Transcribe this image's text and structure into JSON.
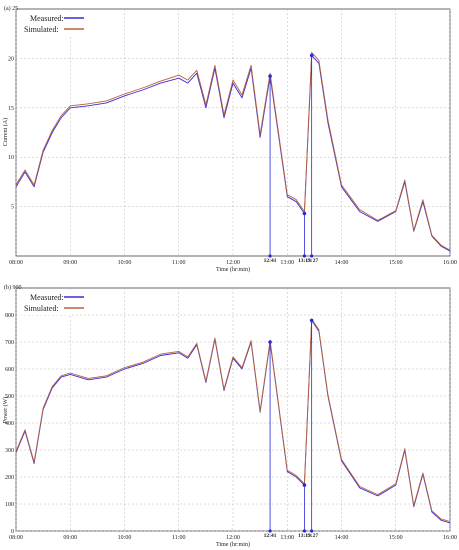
{
  "colors": {
    "measured": "#3b2bd6",
    "simulated": "#b5633a",
    "marker": "#2a2ad9",
    "grid": "#b8b8b8",
    "axis": "#444444"
  },
  "chart_data": [
    {
      "type": "line",
      "panel_label": "(a) 25",
      "xlabel": "Time (hr:min)",
      "ylabel": "Current (A)",
      "xlim": [
        "08:00",
        "16:00"
      ],
      "ylim": [
        0,
        25
      ],
      "xticks": [
        "08:00",
        "09:00",
        "10:00",
        "11:00",
        "12:00",
        "13:00",
        "14:00",
        "15:00",
        "16:00"
      ],
      "yticks": [
        5,
        10,
        15,
        20
      ],
      "legend": {
        "position": "top-left"
      },
      "grid": true,
      "series": [
        {
          "name": "Measured:",
          "color": "#3b2bd6",
          "x": [
            "08:00",
            "08:10",
            "08:20",
            "08:30",
            "08:40",
            "08:50",
            "09:00",
            "09:20",
            "09:40",
            "10:00",
            "10:20",
            "10:40",
            "11:00",
            "11:10",
            "11:20",
            "11:30",
            "11:40",
            "11:50",
            "12:00",
            "12:10",
            "12:20",
            "12:30",
            "12:41",
            "13:00",
            "13:10",
            "13:19",
            "13:27",
            "13:35",
            "13:45",
            "14:00",
            "14:20",
            "14:40",
            "15:00",
            "15:10",
            "15:20",
            "15:30",
            "15:40",
            "15:50",
            "16:00"
          ],
          "y": [
            7.0,
            8.5,
            7.0,
            10.5,
            12.5,
            14.0,
            15.0,
            15.2,
            15.5,
            16.2,
            16.8,
            17.5,
            18.0,
            17.5,
            18.5,
            15.0,
            19.0,
            14.0,
            17.5,
            16.0,
            19.0,
            12.0,
            18.2,
            6.0,
            5.5,
            4.3,
            20.3,
            19.5,
            13.5,
            7.0,
            4.5,
            3.5,
            4.5,
            7.5,
            2.5,
            5.5,
            2.0,
            1.0,
            0.5
          ]
        },
        {
          "name": "Simulated:",
          "color": "#b5633a",
          "x": [
            "08:00",
            "08:10",
            "08:20",
            "08:30",
            "08:40",
            "08:50",
            "09:00",
            "09:20",
            "09:40",
            "10:00",
            "10:20",
            "10:40",
            "11:00",
            "11:10",
            "11:20",
            "11:30",
            "11:40",
            "11:50",
            "12:00",
            "12:10",
            "12:20",
            "12:30",
            "12:41",
            "13:00",
            "13:10",
            "13:19",
            "13:27",
            "13:35",
            "13:45",
            "14:00",
            "14:20",
            "14:40",
            "15:00",
            "15:10",
            "15:20",
            "15:30",
            "15:40",
            "15:50",
            "16:00"
          ],
          "y": [
            7.2,
            8.7,
            7.2,
            10.7,
            12.7,
            14.2,
            15.2,
            15.4,
            15.7,
            16.4,
            17.0,
            17.7,
            18.3,
            17.8,
            18.8,
            15.3,
            19.3,
            14.3,
            17.8,
            16.3,
            19.3,
            12.3,
            18.5,
            6.2,
            5.7,
            4.5,
            20.6,
            19.8,
            13.8,
            7.2,
            4.7,
            3.6,
            4.6,
            7.7,
            2.6,
            5.7,
            2.1,
            1.1,
            0.6
          ]
        }
      ],
      "annotations": [
        {
          "label": "12:41",
          "x": "12:41",
          "y": 18.2
        },
        {
          "label": "13:19",
          "x": "13:19",
          "y": 4.3
        },
        {
          "label": "13:27",
          "x": "13:27",
          "y": 20.3
        }
      ]
    },
    {
      "type": "line",
      "panel_label": "(b) 900",
      "xlabel": "Time (hr:min)",
      "ylabel": "Power (W)",
      "xlim": [
        "08:00",
        "16:00"
      ],
      "ylim": [
        0,
        900
      ],
      "xticks": [
        "08:00",
        "09:00",
        "10:00",
        "11:00",
        "12:00",
        "13:00",
        "14:00",
        "15:00",
        "16:00"
      ],
      "yticks": [
        0,
        100,
        200,
        300,
        400,
        500,
        600,
        700,
        800
      ],
      "legend": {
        "position": "top-left"
      },
      "grid": true,
      "series": [
        {
          "name": "Measured:",
          "color": "#3b2bd6",
          "x": [
            "08:00",
            "08:10",
            "08:20",
            "08:30",
            "08:40",
            "08:50",
            "09:00",
            "09:20",
            "09:40",
            "10:00",
            "10:20",
            "10:40",
            "11:00",
            "11:10",
            "11:20",
            "11:30",
            "11:40",
            "11:50",
            "12:00",
            "12:10",
            "12:20",
            "12:30",
            "12:41",
            "13:00",
            "13:10",
            "13:19",
            "13:27",
            "13:35",
            "13:45",
            "14:00",
            "14:20",
            "14:40",
            "15:00",
            "15:10",
            "15:20",
            "15:30",
            "15:40",
            "15:50",
            "16:00"
          ],
          "y": [
            290,
            370,
            250,
            450,
            530,
            570,
            580,
            560,
            570,
            600,
            620,
            650,
            660,
            640,
            690,
            550,
            710,
            520,
            640,
            600,
            700,
            440,
            700,
            220,
            200,
            170,
            780,
            740,
            500,
            260,
            160,
            130,
            170,
            300,
            90,
            210,
            70,
            40,
            30
          ]
        },
        {
          "name": "Simulated:",
          "color": "#b5633a",
          "x": [
            "08:00",
            "08:10",
            "08:20",
            "08:30",
            "08:40",
            "08:50",
            "09:00",
            "09:20",
            "09:40",
            "10:00",
            "10:20",
            "10:40",
            "11:00",
            "11:10",
            "11:20",
            "11:30",
            "11:40",
            "11:50",
            "12:00",
            "12:10",
            "12:20",
            "12:30",
            "12:41",
            "13:00",
            "13:10",
            "13:19",
            "13:27",
            "13:35",
            "13:45",
            "14:00",
            "14:20",
            "14:40",
            "15:00",
            "15:10",
            "15:20",
            "15:30",
            "15:40",
            "15:50",
            "16:00"
          ],
          "y": [
            295,
            375,
            255,
            455,
            535,
            575,
            585,
            565,
            575,
            605,
            625,
            655,
            665,
            645,
            695,
            555,
            715,
            525,
            645,
            605,
            705,
            445,
            705,
            225,
            205,
            175,
            785,
            745,
            505,
            265,
            165,
            135,
            175,
            305,
            95,
            215,
            75,
            45,
            35
          ]
        }
      ],
      "annotations": [
        {
          "label": "12:41",
          "x": "12:41",
          "y": 700
        },
        {
          "label": "13:19",
          "x": "13:19",
          "y": 170
        },
        {
          "label": "13:27",
          "x": "13:27",
          "y": 780
        }
      ]
    }
  ]
}
